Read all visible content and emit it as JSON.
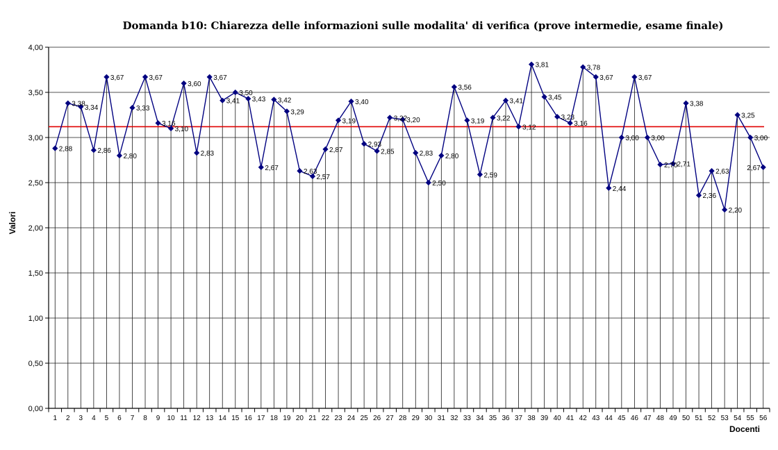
{
  "chart_data": {
    "type": "line",
    "title": "Domanda b10: Chiarezza delle informazioni sulle modalita' di verifica (prove intermedie, esame finale)",
    "xlabel": "Docenti",
    "ylabel": "Valori",
    "x": [
      1,
      2,
      3,
      4,
      5,
      6,
      7,
      8,
      9,
      10,
      11,
      12,
      13,
      14,
      15,
      16,
      17,
      18,
      19,
      20,
      21,
      22,
      23,
      24,
      25,
      26,
      27,
      28,
      29,
      30,
      31,
      32,
      33,
      34,
      35,
      36,
      37,
      38,
      39,
      40,
      41,
      42,
      43,
      44,
      45,
      46,
      47,
      48,
      49,
      50,
      51,
      52,
      53,
      54,
      55,
      56
    ],
    "series": [
      {
        "name": "Valori",
        "color": "#000080",
        "values": [
          2.88,
          3.38,
          3.34,
          2.86,
          3.67,
          2.8,
          3.33,
          3.67,
          3.16,
          3.1,
          3.6,
          2.83,
          3.67,
          3.41,
          3.5,
          3.43,
          2.67,
          3.42,
          3.29,
          2.63,
          2.57,
          2.87,
          3.19,
          3.4,
          2.93,
          2.85,
          3.22,
          3.2,
          2.83,
          2.5,
          2.8,
          3.56,
          3.19,
          2.59,
          3.22,
          3.41,
          3.12,
          3.81,
          3.45,
          3.23,
          3.16,
          3.78,
          3.67,
          2.44,
          3.0,
          3.67,
          3.0,
          2.7,
          2.71,
          3.38,
          2.36,
          2.63,
          2.2,
          3.25,
          3.0,
          2.67
        ]
      }
    ],
    "point_labels": [
      "2,88",
      "3,38",
      "3,34",
      "2,86",
      "3,67",
      "2,80",
      "3,33",
      "3,67",
      "3,16",
      "3,10",
      "3,60",
      "2,83",
      "3,67",
      "3,41",
      "3,50",
      "3,43",
      "2,67",
      "3,42",
      "3,29",
      "2,63",
      "2,57",
      "2,87",
      "3,19",
      "3,40",
      "2,93",
      "2,85",
      "3,22",
      "3,20",
      "2,83",
      "2,50",
      "2,80",
      "3,56",
      "3,19",
      "2,59",
      "3,22",
      "3,41",
      "3,12",
      "3,81",
      "3,45",
      "3,23",
      "3,16",
      "3,78",
      "3,67",
      "2,44",
      "3,00",
      "3,67",
      "3,00",
      "2,70",
      "2,71",
      "3,38",
      "2,36",
      "2,63",
      "2,20",
      "3,25",
      "3,00",
      "2,67"
    ],
    "reference_line": {
      "value": 3.12,
      "color": "#e00000"
    },
    "ylim": [
      0,
      4
    ],
    "ytick_step": 0.5,
    "ytick_labels": [
      "0,00",
      "0,50",
      "1,00",
      "1,50",
      "2,00",
      "2,50",
      "3,00",
      "3,50",
      "4,00"
    ],
    "grid": true,
    "drop_lines": true,
    "legend_position": "none",
    "decimal_separator": ","
  }
}
